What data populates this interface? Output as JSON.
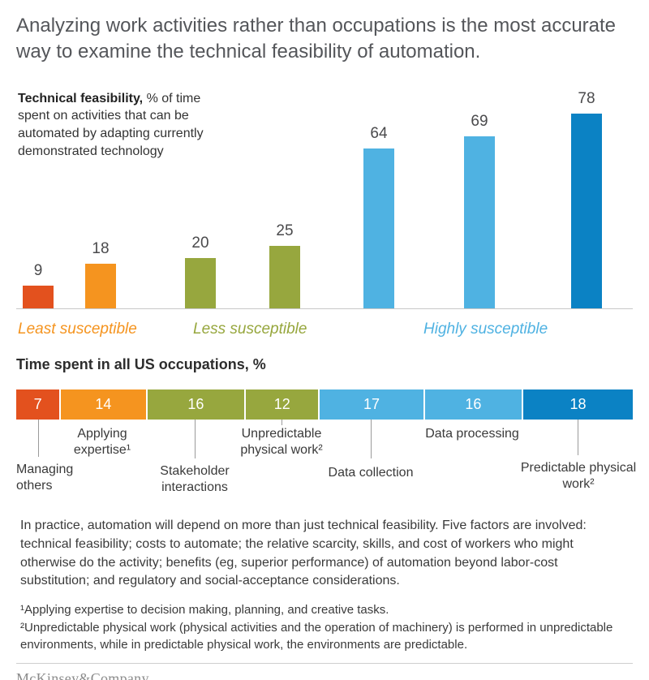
{
  "title": "Analyzing work activities rather than occupations is the most accurate way to examine the technical feasibility of automation.",
  "colors": {
    "dark_orange": "#e3511e",
    "orange": "#f5941f",
    "olive": "#97a73e",
    "light_blue": "#4fb2e2",
    "dark_blue": "#0b82c4",
    "baseline_gray": "#c8c8c8"
  },
  "chart_data": {
    "type": "bar",
    "heading_bold": "Technical feasibility,",
    "heading_rest": " % of time spent on activities that can be automated by adapting currently demonstrated technology",
    "values": [
      9,
      18,
      20,
      25,
      64,
      69,
      78
    ],
    "bar_colors": [
      "#e3511e",
      "#f5941f",
      "#97a73e",
      "#97a73e",
      "#4fb2e2",
      "#4fb2e2",
      "#0b82c4"
    ],
    "ylim": [
      0,
      78
    ],
    "grid": false,
    "group_labels": [
      {
        "label": "Least susceptible",
        "color": "#f5941f"
      },
      {
        "label": "Less susceptible",
        "color": "#97a73e"
      },
      {
        "label": "Highly susceptible",
        "color": "#4fb2e2"
      }
    ]
  },
  "stacked_bar": {
    "type": "stacked-bar",
    "title": "Time spent in all US occupations, %",
    "segments": [
      {
        "value": 7,
        "label": "Managing others",
        "color": "#e3511e"
      },
      {
        "value": 14,
        "label": "Applying expertise¹",
        "color": "#f5941f"
      },
      {
        "value": 16,
        "label": "Stakeholder interactions",
        "color": "#97a73e"
      },
      {
        "value": 12,
        "label": "Unpredictable physical work²",
        "color": "#97a73e"
      },
      {
        "value": 17,
        "label": "Data collection",
        "color": "#4fb2e2"
      },
      {
        "value": 16,
        "label": "Data processing",
        "color": "#4fb2e2"
      },
      {
        "value": 18,
        "label": "Predictable physical work²",
        "color": "#0b82c4"
      }
    ]
  },
  "body_text": "In practice, automation will depend on more than just technical feasibility. Five factors are involved: technical feasibility; costs to automate; the relative scarcity, skills, and cost of workers who might otherwise do the activity; benefits (eg, superior performance) of automation beyond labor-cost substitution; and regulatory and social-acceptance considerations.",
  "footnotes": [
    "¹Applying expertise to decision making, planning, and creative tasks.",
    "²Unpredictable physical work (physical activities and the operation of machinery) is performed in unpredictable environments, while in predictable physical work, the environments are predictable."
  ],
  "logo": "McKinsey&Company"
}
